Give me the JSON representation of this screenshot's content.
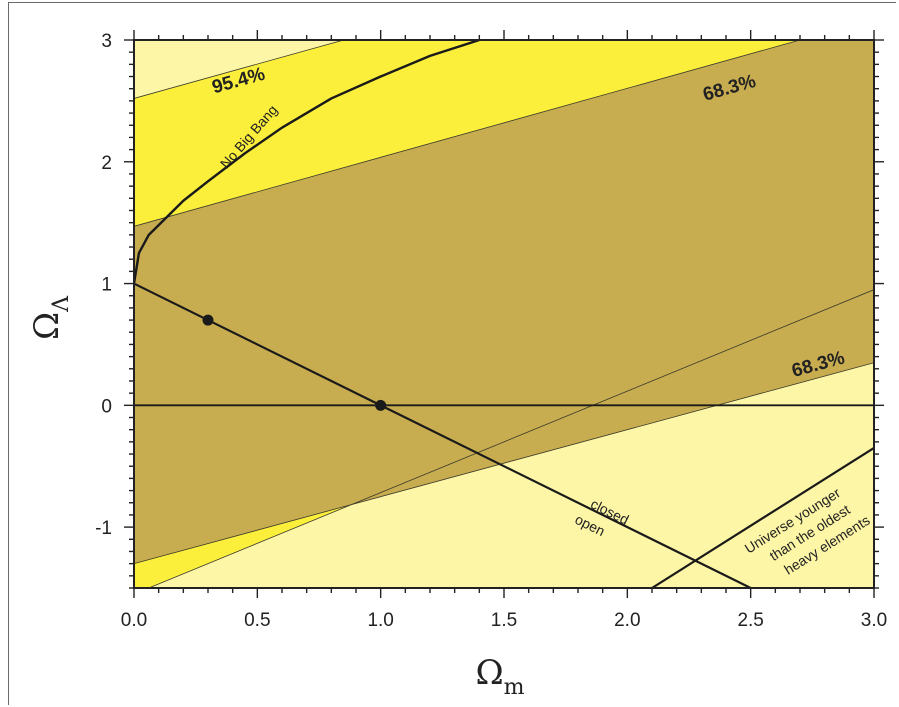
{
  "chart_data": {
    "type": "line",
    "xlabel": "Ω",
    "xlabel_sub": "m",
    "ylabel": "Ω",
    "ylabel_sub": "Λ",
    "xlim": [
      0.0,
      3.0
    ],
    "ylim": [
      -1.5,
      3.0
    ],
    "x_ticks": [
      "0.0",
      "0.5",
      "1.0",
      "1.5",
      "2.0",
      "2.5",
      "3.0"
    ],
    "y_ticks": [
      "-1",
      "0",
      "1",
      "2",
      "3"
    ],
    "grid": false,
    "colors": {
      "outer_region": "#fdf6a6",
      "band_95": "#fbef3c",
      "band_68": "#c8ad50",
      "line": "#1a1a1a"
    },
    "regions": [
      {
        "label": "95.4%",
        "lower_line": [
          [
            0.0,
            -1.55
          ],
          [
            3.0,
            0.95
          ]
        ],
        "upper_line": [
          [
            0.0,
            2.52
          ],
          [
            0.85,
            3.0
          ]
        ]
      },
      {
        "label": "68.3%",
        "label_upper": "68.3%",
        "label_lower": "68.3%",
        "lower_line": [
          [
            0.0,
            -1.3
          ],
          [
            3.0,
            0.35
          ]
        ],
        "upper_line": [
          [
            0.0,
            1.47
          ],
          [
            2.7,
            3.0
          ]
        ]
      }
    ],
    "lines": [
      {
        "label": "No Big Bang",
        "points": [
          [
            0.0,
            1.0
          ],
          [
            0.02,
            1.25
          ],
          [
            0.06,
            1.4
          ],
          [
            0.12,
            1.52
          ],
          [
            0.2,
            1.68
          ],
          [
            0.3,
            1.84
          ],
          [
            0.45,
            2.07
          ],
          [
            0.6,
            2.28
          ],
          [
            0.8,
            2.52
          ],
          [
            1.0,
            2.7
          ],
          [
            1.2,
            2.87
          ],
          [
            1.4,
            3.0
          ]
        ]
      },
      {
        "label_above": "closed",
        "label_below": "open",
        "points": [
          [
            0.0,
            1.0
          ],
          [
            2.5,
            -1.5
          ]
        ]
      },
      {
        "label": "",
        "points": [
          [
            0.0,
            0.0
          ],
          [
            3.0,
            0.0
          ]
        ]
      },
      {
        "label": "Universe younger than the oldest heavy elements",
        "label_lines": [
          "Universe younger",
          "than the oldest",
          "heavy elements"
        ],
        "points": [
          [
            2.1,
            -1.5
          ],
          [
            3.0,
            -0.35
          ]
        ]
      }
    ],
    "points": [
      {
        "x": 0.3,
        "y": 0.7
      },
      {
        "x": 1.0,
        "y": 0.0
      }
    ]
  }
}
